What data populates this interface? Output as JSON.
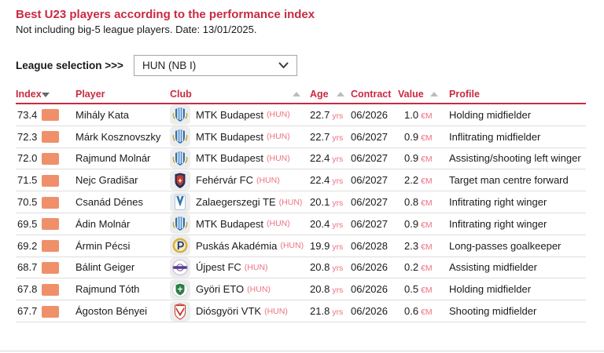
{
  "page": {
    "title": "Best U23 players according to the performance index",
    "subtitle": "Not including big-5 league players. Date: 13/01/2025."
  },
  "league_selector": {
    "label": "League selection >>>",
    "selected_option": "HUN (NB I)"
  },
  "table": {
    "columns": {
      "index": "Index",
      "player": "Player",
      "club": "Club",
      "age": "Age",
      "contract": "Contract",
      "value": "Value",
      "profile": "Profile"
    },
    "sort_state": {
      "index": "descending",
      "club": "sortable",
      "age": "sortable",
      "value": "sortable"
    },
    "units": {
      "age": "yrs",
      "value": "€M"
    },
    "country_suffix": "(HUN)",
    "rows": [
      {
        "index": "73.4",
        "player": "Mihály Kata",
        "club": "MTK Budapest",
        "logo": "mtk",
        "age": "22.7",
        "contract": "06/2026",
        "value": "1.0",
        "profile": "Holding midfielder"
      },
      {
        "index": "72.3",
        "player": "Márk Kosznovszky",
        "club": "MTK Budapest",
        "logo": "mtk",
        "age": "22.7",
        "contract": "06/2027",
        "value": "0.9",
        "profile": "Inflitrating midfielder"
      },
      {
        "index": "72.0",
        "player": "Rajmund Molnár",
        "club": "MTK Budapest",
        "logo": "mtk",
        "age": "22.4",
        "contract": "06/2027",
        "value": "0.9",
        "profile": "Assisting/shooting left winger"
      },
      {
        "index": "71.5",
        "player": "Nejc Gradišar",
        "club": "Fehérvár FC",
        "logo": "fehervar",
        "age": "22.4",
        "contract": "06/2027",
        "value": "2.2",
        "profile": "Target man centre forward"
      },
      {
        "index": "70.5",
        "player": "Csanád Dénes",
        "club": "Zalaegerszegi TE",
        "logo": "zte",
        "age": "20.1",
        "contract": "06/2027",
        "value": "0.8",
        "profile": "Infitrating right winger"
      },
      {
        "index": "69.5",
        "player": "Ádin Molnár",
        "club": "MTK Budapest",
        "logo": "mtk",
        "age": "20.4",
        "contract": "06/2027",
        "value": "0.9",
        "profile": "Infitrating right winger"
      },
      {
        "index": "69.2",
        "player": "Ármin Pécsi",
        "club": "Puskás Akadémia",
        "logo": "puskas",
        "age": "19.9",
        "contract": "06/2028",
        "value": "2.3",
        "profile": "Long-passes goalkeeper"
      },
      {
        "index": "68.7",
        "player": "Bálint Geiger",
        "club": "Újpest FC",
        "logo": "ujpest",
        "age": "20.8",
        "contract": "06/2026",
        "value": "0.2",
        "profile": "Assisting midfielder"
      },
      {
        "index": "67.8",
        "player": "Rajmund Tóth",
        "club": "Györi ETO",
        "logo": "gyor",
        "age": "20.8",
        "contract": "06/2026",
        "value": "0.5",
        "profile": "Holding midfielder"
      },
      {
        "index": "67.7",
        "player": "Ágoston Bényei",
        "club": "Diósgyöri VTK",
        "logo": "dvtk",
        "age": "21.8",
        "contract": "06/2026",
        "value": "0.6",
        "profile": "Shooting midfielder"
      }
    ]
  },
  "colors": {
    "accent_red": "#c92a41",
    "accent_pink": "#ee7180",
    "swatch_orange": "#f0906a"
  }
}
